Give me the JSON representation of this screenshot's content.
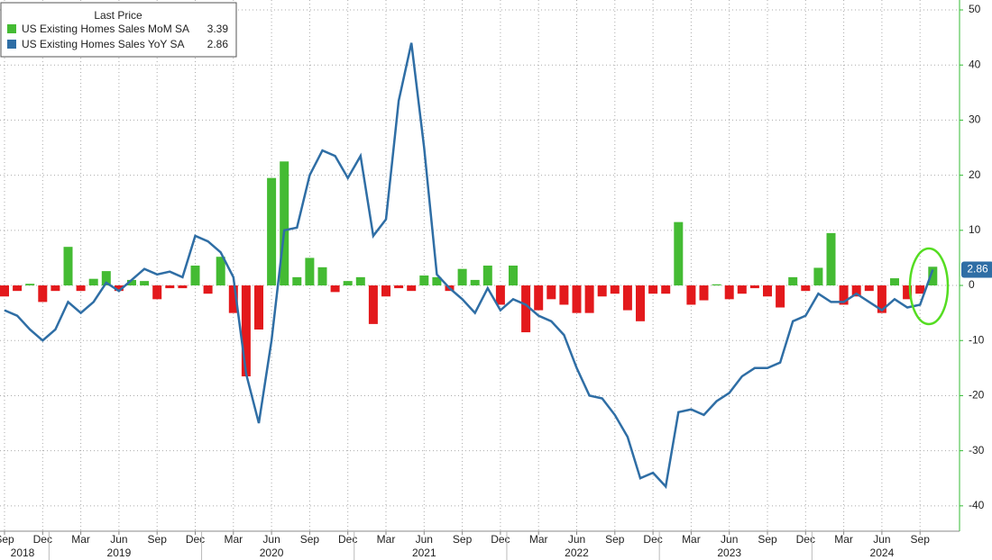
{
  "chart_data": {
    "type": "bar",
    "legend_title": "Last Price",
    "categories": [
      "Sep",
      null,
      null,
      "Dec",
      null,
      null,
      "Mar",
      null,
      null,
      "Jun",
      null,
      null,
      "Sep",
      null,
      null,
      "Dec",
      null,
      null,
      "Mar",
      null,
      null,
      "Jun",
      null,
      null,
      "Sep",
      null,
      null,
      "Dec",
      null,
      null,
      "Mar",
      null,
      null,
      "Jun",
      null,
      null,
      "Sep",
      null,
      null,
      "Dec",
      null,
      null,
      "Mar",
      null,
      null,
      "Jun",
      null,
      null,
      "Sep",
      null,
      null,
      "Dec",
      null,
      null,
      "Mar",
      null,
      null,
      "Jun",
      null,
      null,
      "Sep",
      null,
      null,
      "Dec",
      null,
      null,
      "Mar",
      null,
      null,
      "Jun",
      null,
      null,
      "Sep",
      null
    ],
    "years": [
      "2018",
      "2019",
      "2020",
      "2021",
      "2022",
      "2023",
      "2024"
    ],
    "series": [
      {
        "name": "US Existing Homes Sales MoM SA",
        "type": "bar",
        "color": "#44bb33",
        "negative_color": "#e3191c",
        "values": [
          -2,
          -1,
          0.3,
          -3,
          -1,
          7,
          -1,
          1.2,
          2.6,
          -1,
          1,
          0.8,
          -2.5,
          -0.5,
          -0.5,
          3.6,
          -1.5,
          5.2,
          -5,
          -16.5,
          -8,
          19.5,
          22.5,
          1.5,
          5,
          3.3,
          -1.2,
          0.8,
          1.5,
          -7,
          -2,
          -0.5,
          -1,
          1.8,
          1.5,
          -1,
          3,
          1,
          3.6,
          -3.5,
          3.6,
          -8.5,
          -4.5,
          -2.5,
          -3.5,
          -5,
          -5,
          -2,
          -1.5,
          -4.5,
          -6.5,
          -1.5,
          -1.5,
          11.5,
          -3.5,
          -2.7,
          0.2,
          -2.5,
          -1.5,
          -0.5,
          -2,
          -4,
          1.5,
          -1,
          3.2,
          9.5,
          -3.5,
          -2,
          -1,
          -5,
          1.3,
          -2.5,
          -1.5,
          3.39
        ]
      },
      {
        "name": "US Existing Homes Sales YoY SA",
        "type": "line",
        "color": "#2f6ea5",
        "values": [
          -4.5,
          -5.5,
          -8,
          -10,
          -8,
          -3,
          -5,
          -3,
          0.5,
          -1,
          1,
          3,
          2,
          2.5,
          1.5,
          9,
          8,
          6,
          1.5,
          -16,
          -25,
          -10,
          10,
          10.5,
          20,
          24.5,
          23.5,
          19.5,
          23.5,
          9,
          12,
          33.5,
          44,
          25,
          2,
          -0.5,
          -2.5,
          -5,
          -0.5,
          -4.5,
          -2.5,
          -3.5,
          -5.5,
          -6.5,
          -9,
          -15,
          -20,
          -20.5,
          -23.5,
          -27.5,
          -35,
          -34,
          -36.5,
          -23,
          -22.5,
          -23.5,
          -21,
          -19.5,
          -16.5,
          -15,
          -15,
          -14,
          -6.5,
          -5.5,
          -1.5,
          -3,
          -3,
          -1.5,
          -3,
          -4.5,
          -2.5,
          -4,
          -3.5,
          2.86
        ]
      }
    ],
    "ylim": [
      -44.6,
      51.8
    ],
    "yticks": [
      -40,
      -30,
      -20,
      -10,
      0,
      10,
      20,
      30,
      40,
      50
    ],
    "grid": true
  }
}
